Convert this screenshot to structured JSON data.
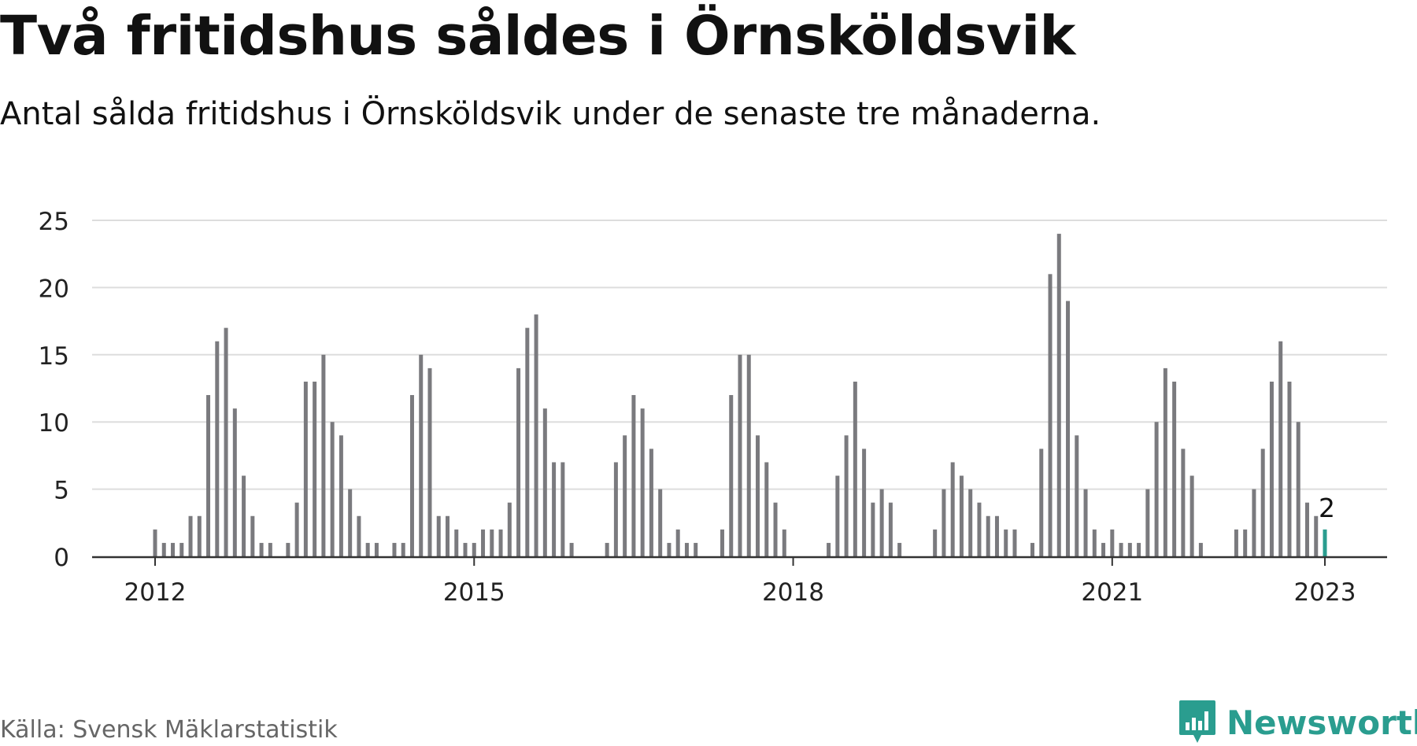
{
  "header": {
    "title": "Två fritidshus såldes i Örnsköldsvik",
    "subtitle": "Antal sålda fritidshus i Örnsköldsvik under de senaste tre månaderna."
  },
  "footer": {
    "source": "Källa: Svensk Mäklarstatistik",
    "logo_text": "Newsworthy",
    "logo_icon": "bar-chart-icon"
  },
  "colors": {
    "bar": "#7a7a7e",
    "highlight": "#2a9d8f",
    "grid": "#dddddd",
    "axis": "#333333",
    "text": "#222222"
  },
  "chart_data": {
    "type": "bar",
    "start_month": "2012-01",
    "end_month": "2023-01",
    "x_tick_labels": [
      "2012",
      "2015",
      "2018",
      "2021",
      "2023"
    ],
    "y_ticks": [
      0,
      5,
      10,
      15,
      20,
      25
    ],
    "ylim": [
      0,
      25
    ],
    "grid": true,
    "highlight_label": "2",
    "values": [
      2,
      1,
      1,
      1,
      3,
      3,
      12,
      16,
      17,
      11,
      6,
      3,
      1,
      1,
      0,
      1,
      4,
      13,
      13,
      15,
      10,
      9,
      5,
      3,
      1,
      1,
      0,
      1,
      1,
      12,
      15,
      14,
      3,
      3,
      2,
      1,
      1,
      2,
      2,
      2,
      4,
      14,
      17,
      18,
      11,
      7,
      7,
      1,
      0,
      0,
      0,
      1,
      7,
      9,
      12,
      11,
      8,
      5,
      1,
      2,
      1,
      1,
      0,
      0,
      2,
      12,
      15,
      15,
      9,
      7,
      4,
      2,
      0,
      0,
      0,
      0,
      1,
      6,
      9,
      13,
      8,
      4,
      5,
      4,
      1,
      0,
      0,
      0,
      2,
      5,
      7,
      6,
      5,
      4,
      3,
      3,
      2,
      2,
      0,
      1,
      8,
      21,
      24,
      19,
      9,
      5,
      2,
      1,
      2,
      1,
      1,
      1,
      5,
      10,
      14,
      13,
      8,
      6,
      1,
      0,
      0,
      0,
      2,
      2,
      5,
      8,
      13,
      16,
      13,
      10,
      4,
      3,
      2
    ]
  }
}
